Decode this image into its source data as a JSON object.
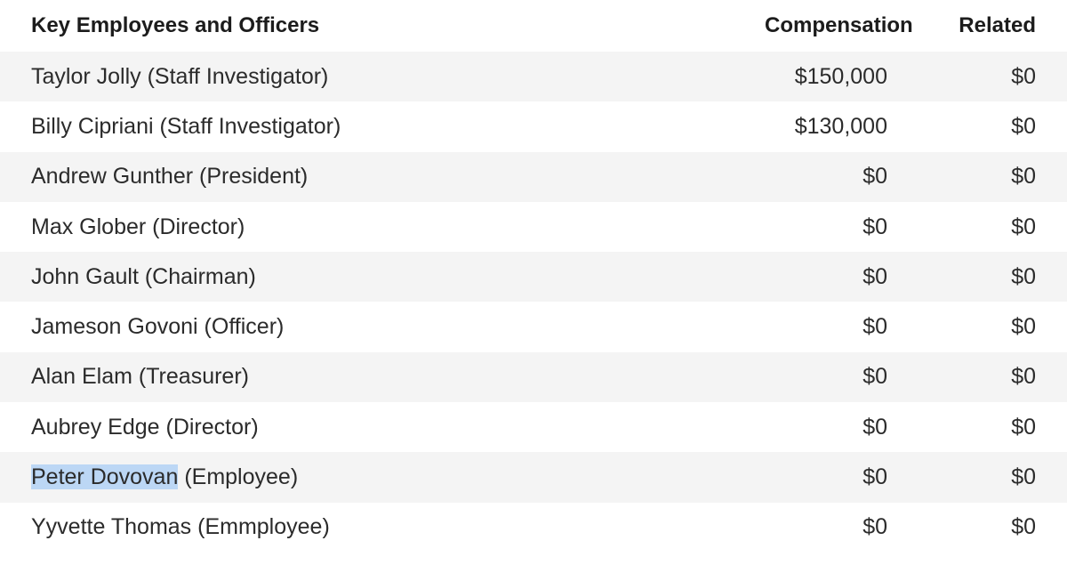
{
  "header": {
    "name": "Key Employees and Officers",
    "compensation": "Compensation",
    "related": "Related"
  },
  "rows": [
    {
      "name": "Taylor Jolly (Staff Investigator)",
      "compensation": "$150,000",
      "related": "$0"
    },
    {
      "name": "Billy Cipriani (Staff Investigator)",
      "compensation": "$130,000",
      "related": "$0"
    },
    {
      "name": "Andrew Gunther (President)",
      "compensation": "$0",
      "related": "$0"
    },
    {
      "name": "Max Glober (Director)",
      "compensation": "$0",
      "related": "$0"
    },
    {
      "name": "John Gault (Chairman)",
      "compensation": "$0",
      "related": "$0"
    },
    {
      "name": "Jameson Govoni (Officer)",
      "compensation": "$0",
      "related": "$0"
    },
    {
      "name": "Alan Elam (Treasurer)",
      "compensation": "$0",
      "related": "$0"
    },
    {
      "name": "Aubrey Edge (Director)",
      "compensation": "$0",
      "related": "$0"
    },
    {
      "name_selected": "Peter Dovovan",
      "name_rest": " (Employee)",
      "compensation": "$0",
      "related": "$0"
    },
    {
      "name": "Yyvette Thomas (Emmployee)",
      "compensation": "$0",
      "related": "$0"
    }
  ],
  "colors": {
    "row_shade": "#f4f4f4",
    "selection": "#bcd7f5",
    "text": "#2b2b2b"
  }
}
